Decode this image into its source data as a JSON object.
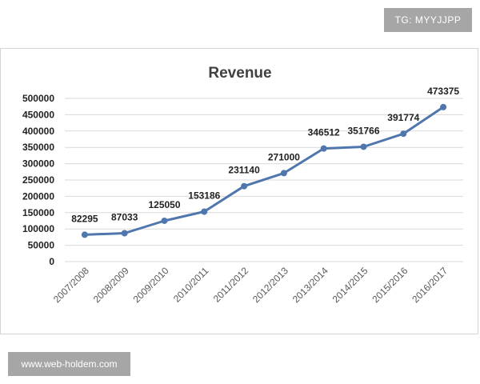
{
  "badges": {
    "tg": "TG: MYYJJPP",
    "site": "www.web-holdem.com"
  },
  "chart_data": {
    "type": "line",
    "title": "Revenue",
    "xlabel": "",
    "ylabel": "",
    "categories": [
      "2007/2008",
      "2008/2009",
      "2009/2010",
      "2010/2011",
      "2011/2012",
      "2012/2013",
      "2013/2014",
      "2014/2015",
      "2015/2016",
      "2016/2017"
    ],
    "series": [
      {
        "values": [
          82295,
          87033,
          125050,
          153186,
          231140,
          271000,
          346512,
          351766,
          391774,
          473375
        ],
        "labels": [
          "82295",
          "87033",
          "125050",
          "153186",
          "231140",
          "271000",
          "346512",
          "351766",
          "391774",
          "473375"
        ],
        "color": "#4f76ad"
      }
    ],
    "ylim": [
      0,
      500000
    ],
    "yticks": [
      "0",
      "50000",
      "100000",
      "150000",
      "200000",
      "250000",
      "300000",
      "350000",
      "400000",
      "450000",
      "500000"
    ],
    "grid": true,
    "legend": "none"
  }
}
